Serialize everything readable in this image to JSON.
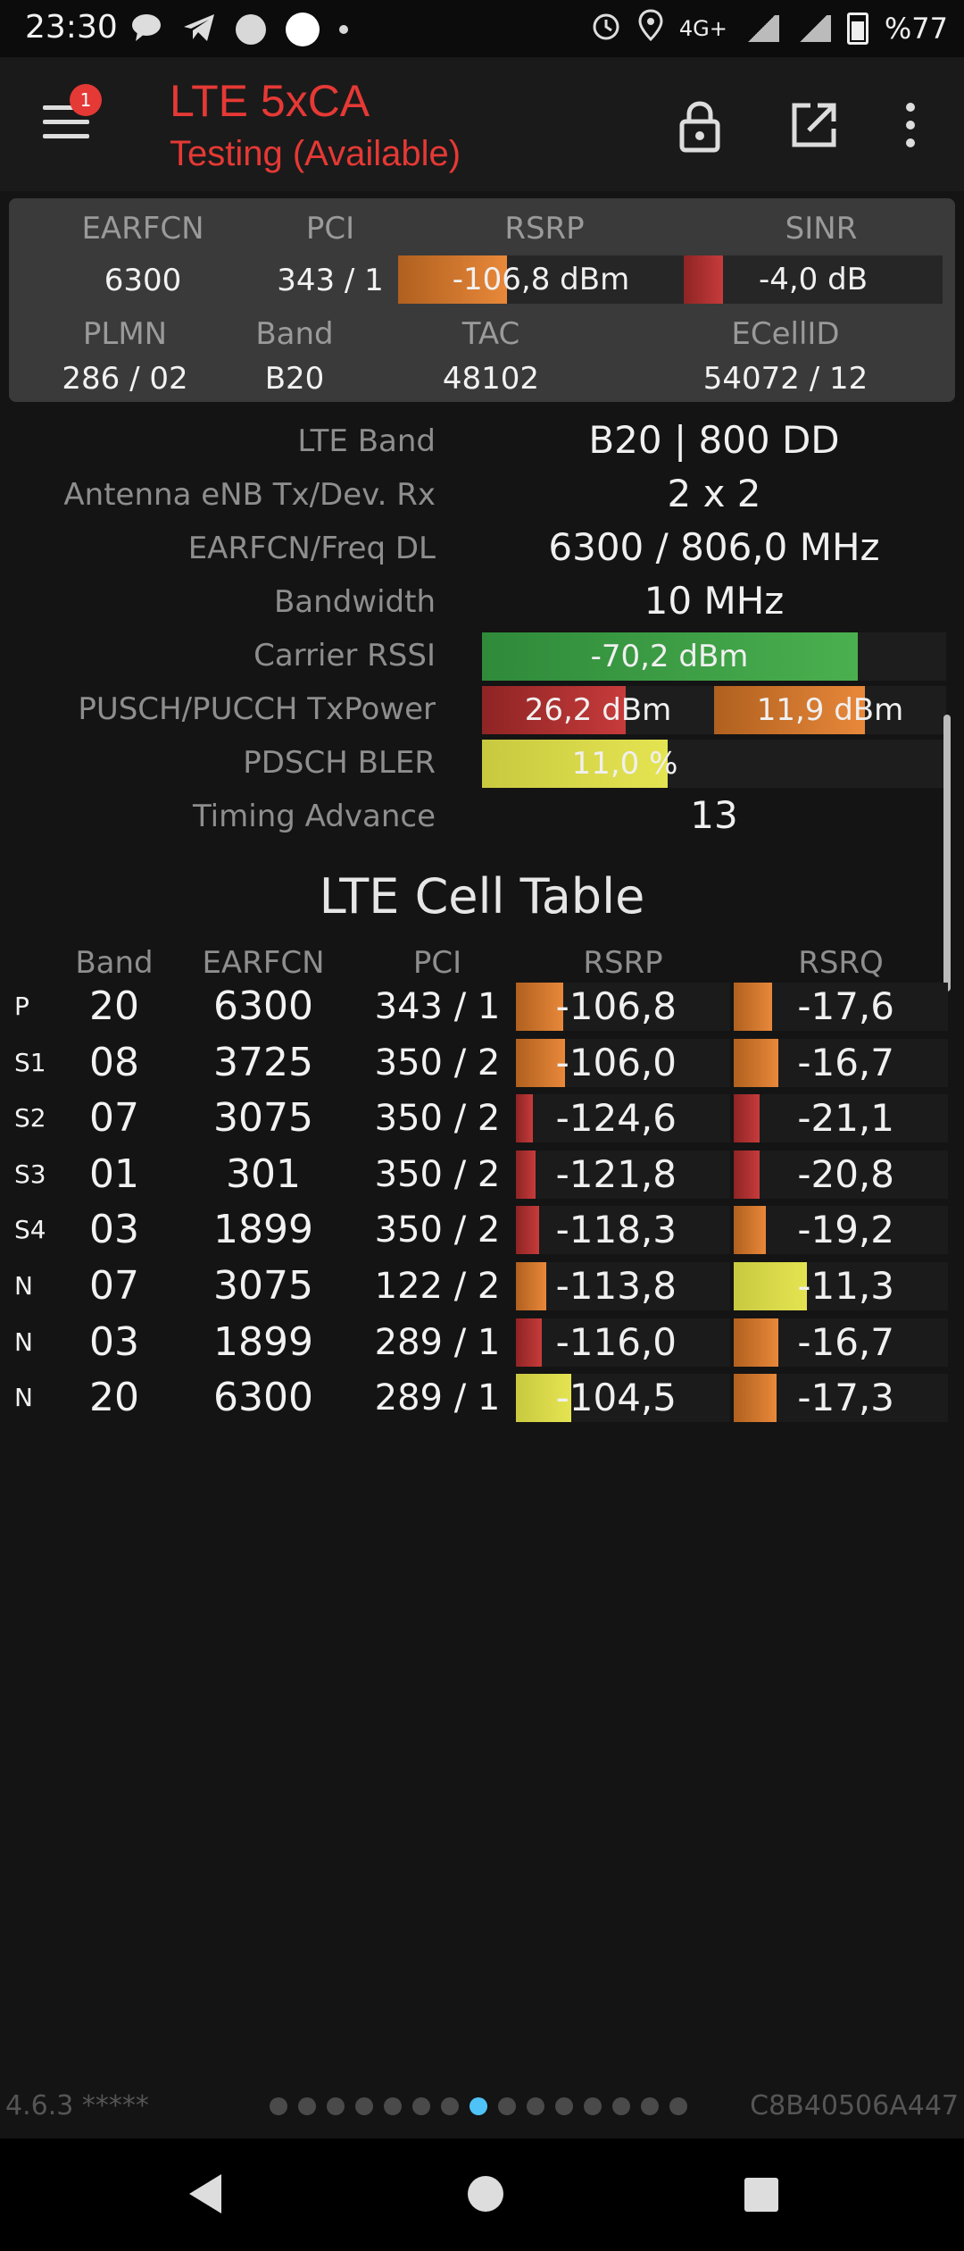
{
  "status_bar": {
    "time": "23:30",
    "network": "4G+",
    "battery": "%77",
    "icons": [
      "message-icon",
      "telegram-icon",
      "circle-icon",
      "circle-icon",
      "dot-icon",
      "alarm-icon",
      "location-icon",
      "signal-icon",
      "battery-icon"
    ]
  },
  "app_bar": {
    "title": "LTE 5xCA",
    "subtitle": "Testing (Available)",
    "badge": "1",
    "icons": [
      "menu-icon",
      "lock-icon",
      "share-icon",
      "more-icon"
    ]
  },
  "summary": {
    "labels": {
      "earfcn": "EARFCN",
      "pci": "PCI",
      "rsrp": "RSRP",
      "sinr": "SINR",
      "plmn": "PLMN",
      "band": "Band",
      "tac": "TAC",
      "ecellid": "ECellID"
    },
    "earfcn": "6300",
    "pci": "343 / 1",
    "rsrp": "-106,8 dBm",
    "rsrp_level": 0.38,
    "sinr": "-4,0 dB",
    "sinr_level": 0.15,
    "plmn": "286 / 02",
    "band": "B20",
    "tac": "48102",
    "ecellid": "54072 / 12"
  },
  "details": {
    "lte_band_label": "LTE Band",
    "lte_band": "B20 | 800 DD",
    "antenna_label": "Antenna eNB Tx/Dev. Rx",
    "antenna": "2 x 2",
    "earfcn_freq_label": "EARFCN/Freq DL",
    "earfcn_freq": "6300 / 806,0 MHz",
    "bandwidth_label": "Bandwidth",
    "bandwidth": "10 MHz",
    "carrier_rssi_label": "Carrier RSSI",
    "carrier_rssi": "-70,2 dBm",
    "carrier_rssi_level": 0.81,
    "txpower_label": "PUSCH/PUCCH TxPower",
    "pusch_txpower": "26,2 dBm",
    "pusch_level": 0.62,
    "pucch_txpower": "11,9 dBm",
    "pucch_level": 0.65,
    "bler_label": "PDSCH BLER",
    "bler": "11,0 %",
    "bler_level": 0.4,
    "timing_advance_label": "Timing Advance",
    "timing_advance": "13"
  },
  "cell_table": {
    "title": "LTE Cell Table",
    "headers": {
      "band": "Band",
      "earfcn": "EARFCN",
      "pci": "PCI",
      "rsrp": "RSRP",
      "rsrq": "RSRQ"
    },
    "rows": [
      {
        "type": "P",
        "band": "20",
        "earfcn": "6300",
        "pci": "343 / 1",
        "rsrp": "-106,8",
        "rsrp_level": 0.22,
        "rsrp_color": "orange",
        "rsrq": "-17,6",
        "rsrq_level": 0.18,
        "rsrq_color": "orange"
      },
      {
        "type": "S1",
        "band": "08",
        "earfcn": "3725",
        "pci": "350 / 2",
        "rsrp": "-106,0",
        "rsrp_level": 0.23,
        "rsrp_color": "orange",
        "rsrq": "-16,7",
        "rsrq_level": 0.21,
        "rsrq_color": "orange"
      },
      {
        "type": "S2",
        "band": "07",
        "earfcn": "3075",
        "pci": "350 / 2",
        "rsrp": "-124,6",
        "rsrp_level": 0.08,
        "rsrp_color": "red",
        "rsrq": "-21,1",
        "rsrq_level": 0.12,
        "rsrq_color": "red"
      },
      {
        "type": "S3",
        "band": "01",
        "earfcn": "301",
        "pci": "350 / 2",
        "rsrp": "-121,8",
        "rsrp_level": 0.09,
        "rsrp_color": "red",
        "rsrq": "-20,8",
        "rsrq_level": 0.12,
        "rsrq_color": "red"
      },
      {
        "type": "S4",
        "band": "03",
        "earfcn": "1899",
        "pci": "350 / 2",
        "rsrp": "-118,3",
        "rsrp_level": 0.11,
        "rsrp_color": "red",
        "rsrq": "-19,2",
        "rsrq_level": 0.15,
        "rsrq_color": "orange"
      },
      {
        "type": "N",
        "band": "07",
        "earfcn": "3075",
        "pci": "122 / 2",
        "rsrp": "-113,8",
        "rsrp_level": 0.14,
        "rsrp_color": "orange",
        "rsrq": "-11,3",
        "rsrq_level": 0.34,
        "rsrq_color": "yellow"
      },
      {
        "type": "N",
        "band": "03",
        "earfcn": "1899",
        "pci": "289 / 1",
        "rsrp": "-116,0",
        "rsrp_level": 0.12,
        "rsrp_color": "red",
        "rsrq": "-16,7",
        "rsrq_level": 0.21,
        "rsrq_color": "orange"
      },
      {
        "type": "N",
        "band": "20",
        "earfcn": "6300",
        "pci": "289 / 1",
        "rsrp": "-104,5",
        "rsrp_level": 0.26,
        "rsrp_color": "yellow",
        "rsrq": "-17,3",
        "rsrq_level": 0.2,
        "rsrq_color": "orange"
      }
    ]
  },
  "footer": {
    "version": "4.6.3 *****",
    "device_id": "C8B40506A447",
    "page_count": 15,
    "active_page": 8
  },
  "nav_bar": {
    "icons": [
      "back-icon",
      "home-icon",
      "recent-apps-icon"
    ]
  }
}
